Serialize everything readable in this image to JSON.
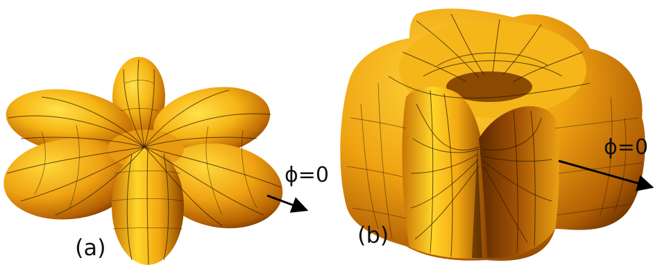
{
  "figure": {
    "panels": [
      {
        "id": "a",
        "label": "(a)",
        "direction_label": "ϕ=0",
        "shape": "six-lobed-flower"
      },
      {
        "id": "b",
        "label": "(b)",
        "direction_label": "ϕ=0",
        "shape": "toroidal-four-lobed"
      }
    ],
    "colors": {
      "surface_light": "#FFD21A",
      "surface_mid": "#F0A010",
      "surface_dark": "#7A3A00",
      "mesh": "#2a1a00",
      "text": "#111111",
      "background": "#ffffff"
    }
  }
}
